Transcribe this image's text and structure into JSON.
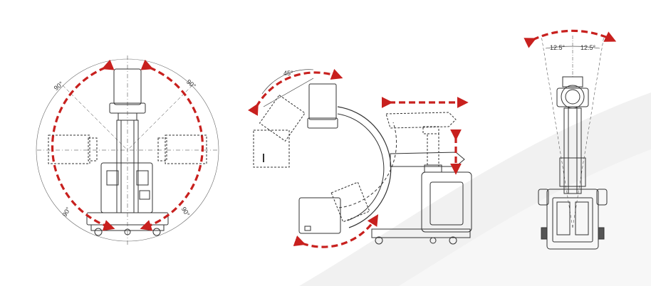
{
  "colors": {
    "arrow": "#c8201e",
    "line": "#333333",
    "background": "#ffffff",
    "swoosh": "#f1f1f1"
  },
  "views": [
    {
      "name": "front-view",
      "labels": {
        "upper_left": "90°",
        "upper_right": "90°",
        "lower_left": "90°",
        "lower_right": "90°"
      }
    },
    {
      "name": "side-view",
      "labels": {
        "angle": "45°"
      }
    },
    {
      "name": "top-view",
      "labels": {
        "left": "12.5°",
        "right": "12.5°"
      }
    }
  ]
}
